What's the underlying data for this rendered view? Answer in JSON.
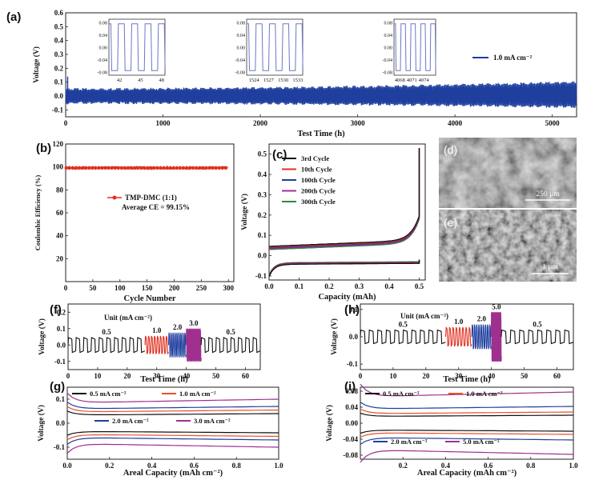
{
  "panels": {
    "a": {
      "label": "(a)"
    },
    "b": {
      "label": "(b)"
    },
    "c": {
      "label": "(c)"
    },
    "d": {
      "label": "(d)",
      "scale_bar": "250 μm"
    },
    "e": {
      "label": "(e)",
      "scale_bar": "1 μm"
    },
    "f": {
      "label": "(f)"
    },
    "g": {
      "label": "(g)"
    },
    "h": {
      "label": "(h)"
    },
    "i": {
      "label": "(i)"
    }
  },
  "colors": {
    "blue": "#1f3f9e",
    "red": "#e03020",
    "black": "#111111",
    "purple": "#a0308f",
    "green": "#2a8a3a",
    "orange": "#e8502a"
  },
  "chart_data": [
    {
      "id": "a",
      "type": "line",
      "xlabel": "Test Time (h)",
      "ylabel": "Voltage (V)",
      "xlim": [
        0,
        5250
      ],
      "ylim": [
        -0.15,
        0.6
      ],
      "xticks": [
        0,
        1000,
        2000,
        3000,
        4000,
        5000
      ],
      "yticks": [
        -0.1,
        0.0,
        0.1,
        0.2,
        0.3,
        0.4,
        0.5,
        0.6
      ],
      "ytick_labels": [
        "-0.1",
        "0.0",
        "0.1",
        "0.2",
        "0.3",
        "0.4",
        "0.5",
        "0.6"
      ],
      "series": [
        {
          "name": "1.0 mA cm⁻²",
          "band": [
            -0.05,
            0.05
          ],
          "band_end": [
            -0.08,
            0.1
          ]
        }
      ],
      "legend": "right",
      "insets": [
        {
          "xticks": [
            42,
            45,
            48
          ],
          "yticks": [
            "0.08",
            "0.04",
            "0.00",
            "-0.04",
            "-0.08"
          ],
          "x": [
            40.5,
            48.5
          ]
        },
        {
          "xticks": [
            1524,
            1527,
            1530,
            1533
          ],
          "yticks": [
            "0.08",
            "0.04",
            "0.00",
            "-0.04",
            "-0.08"
          ],
          "x": [
            1522.5,
            1534
          ]
        },
        {
          "xticks": [
            4068,
            4071,
            4074
          ],
          "yticks": [
            "0.08",
            "0.04",
            "0.00",
            "-0.04",
            "-0.08"
          ],
          "x": [
            4066.5,
            4077
          ]
        }
      ]
    },
    {
      "id": "b",
      "type": "scatter",
      "xlabel": "Cycle Number",
      "ylabel": "Coulombic Efficiency (%)",
      "xlim": [
        0,
        310
      ],
      "ylim": [
        0,
        120
      ],
      "xticks": [
        0,
        50,
        100,
        150,
        200,
        250,
        300
      ],
      "yticks": [
        20,
        40,
        60,
        80,
        100,
        120
      ],
      "series": [
        {
          "name": "TMP-DMC (1:1)",
          "values": 99.15,
          "range": [
            1,
            300
          ]
        }
      ],
      "annotation": "Average CE = 99.15%"
    },
    {
      "id": "c",
      "type": "line",
      "xlabel": "Capacity (mAh)",
      "ylabel": "Voltage (V)",
      "xlim": [
        0,
        0.52
      ],
      "ylim": [
        -0.12,
        0.55
      ],
      "xticks": [
        0.0,
        0.1,
        0.2,
        0.3,
        0.4,
        0.5
      ],
      "xtick_labels": [
        "0.0",
        "0.1",
        "0.2",
        "0.3",
        "0.4",
        "0.5"
      ],
      "yticks": [
        -0.1,
        0.0,
        0.1,
        0.2,
        0.3,
        0.4,
        0.5
      ],
      "ytick_labels": [
        "-0.1",
        "0.0",
        "0.1",
        "0.2",
        "0.3",
        "0.4",
        "0.5"
      ],
      "series": [
        {
          "name": "3rd Cycle",
          "color": "black"
        },
        {
          "name": "10th Cycle",
          "color": "red"
        },
        {
          "name": "100th Cycle",
          "color": "blue"
        },
        {
          "name": "200th Cycle",
          "color": "purple"
        },
        {
          "name": "300th Cycle",
          "color": "green"
        }
      ]
    },
    {
      "id": "f",
      "type": "line",
      "xlabel": "Test Time (h)",
      "ylabel": "Voltage (V)",
      "xlim": [
        0,
        65
      ],
      "ylim": [
        -0.15,
        0.25
      ],
      "xticks": [
        0,
        10,
        20,
        30,
        40,
        50,
        60
      ],
      "yticks": [
        -0.1,
        0.0,
        0.1,
        0.2
      ],
      "ytick_labels": [
        "-0.1",
        "0.0",
        "0.1",
        "0.2"
      ],
      "unit_label": "Unit (mA cm⁻²)",
      "segments": [
        {
          "rate": "0.5",
          "t": [
            0,
            26
          ],
          "amp": 0.045,
          "color": "black"
        },
        {
          "rate": "1.0",
          "t": [
            26,
            34
          ],
          "amp": 0.055,
          "color": "red"
        },
        {
          "rate": "2.0",
          "t": [
            34,
            40
          ],
          "amp": 0.075,
          "color": "blue"
        },
        {
          "rate": "3.0",
          "t": [
            40,
            45
          ],
          "amp": 0.1,
          "color": "purple"
        },
        {
          "rate": "0.5",
          "t": [
            45,
            65
          ],
          "amp": 0.045,
          "color": "black"
        }
      ]
    },
    {
      "id": "g",
      "type": "line",
      "xlabel": "Areal Capacity (mAh cm⁻²)",
      "ylabel": "Voltage (V)",
      "xlim": [
        0,
        1.0
      ],
      "ylim": [
        -0.15,
        0.15
      ],
      "xticks": [
        0.0,
        0.2,
        0.4,
        0.6,
        0.8,
        1.0
      ],
      "xtick_labels": [
        "0.0",
        "0.2",
        "0.4",
        "0.6",
        "0.8",
        "1.0"
      ],
      "yticks": [
        -0.1,
        0.0,
        0.1
      ],
      "ytick_labels": [
        "-0.1",
        "0.0",
        "0.1"
      ],
      "series": [
        {
          "name": "0.5 mA cm⁻²",
          "color": "black",
          "level": 0.04
        },
        {
          "name": "1.0 mA cm⁻²",
          "color": "orange",
          "level": 0.055
        },
        {
          "name": "2.0 mA cm⁻²",
          "color": "blue",
          "level": 0.07
        },
        {
          "name": "3.0 mA cm⁻²",
          "color": "purple",
          "level": 0.1
        }
      ]
    },
    {
      "id": "h",
      "type": "line",
      "xlabel": "Test Time (h)",
      "ylabel": "Voltage (V)",
      "xlim": [
        0,
        65
      ],
      "ylim": [
        -0.12,
        0.12
      ],
      "xticks": [
        0,
        10,
        20,
        30,
        40,
        50,
        60
      ],
      "yticks": [
        -0.1,
        0.0,
        0.1
      ],
      "ytick_labels": [
        "-0.1",
        "0.0",
        "0.1"
      ],
      "unit_label": "Unit (mA cm⁻²)",
      "segments": [
        {
          "rate": "0.5",
          "t": [
            0,
            26
          ],
          "amp": 0.025,
          "color": "black"
        },
        {
          "rate": "1.0",
          "t": [
            26,
            34
          ],
          "amp": 0.035,
          "color": "red"
        },
        {
          "rate": "2.0",
          "t": [
            34,
            40
          ],
          "amp": 0.045,
          "color": "blue"
        },
        {
          "rate": "5.0",
          "t": [
            40,
            43
          ],
          "amp": 0.09,
          "color": "purple"
        },
        {
          "rate": "0.5",
          "t": [
            43,
            65
          ],
          "amp": 0.025,
          "color": "black"
        }
      ]
    },
    {
      "id": "i",
      "type": "line",
      "xlabel": "Areal Capacity (mAh cm⁻²)",
      "ylabel": "Voltage (V)",
      "xlim": [
        0,
        1.0
      ],
      "ylim": [
        -0.09,
        0.09
      ],
      "xticks": [
        0.2,
        0.4,
        0.6,
        0.8,
        1.0
      ],
      "xtick_labels": [
        "0.2",
        "0.4",
        "0.6",
        "0.8",
        "1.0"
      ],
      "yticks": [
        -0.08,
        -0.04,
        0.0,
        0.04,
        0.08
      ],
      "ytick_labels": [
        "-0.08",
        "-0.04",
        "0.00",
        "0.04",
        "0.08"
      ],
      "series": [
        {
          "name": "0.5 mA cm⁻²",
          "color": "black",
          "level": 0.02
        },
        {
          "name": "1.0 mA cm⁻²",
          "color": "orange",
          "level": 0.028
        },
        {
          "name": "2.0 mA cm⁻²",
          "color": "blue",
          "level": 0.042
        },
        {
          "name": "5.0 mA cm⁻²",
          "color": "purple",
          "level": 0.078
        }
      ]
    }
  ]
}
